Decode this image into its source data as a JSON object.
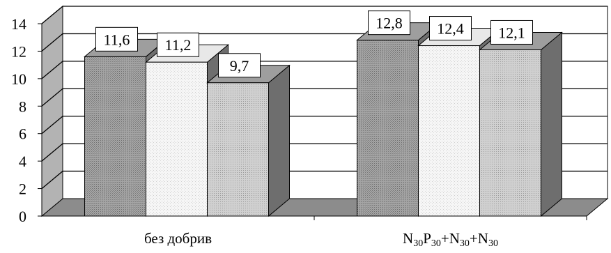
{
  "chart_data": {
    "type": "bar",
    "style": "3d-clustered",
    "categories": [
      "без добрив",
      "N30P30+N30+N30"
    ],
    "category_display": [
      [
        {
          "text": "без добрив",
          "sub": false
        }
      ],
      [
        {
          "text": "N",
          "sub": false
        },
        {
          "text": "30",
          "sub": true
        },
        {
          "text": "P",
          "sub": false
        },
        {
          "text": "30",
          "sub": true
        },
        {
          "text": "+N",
          "sub": false
        },
        {
          "text": "30",
          "sub": true
        },
        {
          "text": "+N",
          "sub": false
        },
        {
          "text": "30",
          "sub": true
        }
      ]
    ],
    "series": [
      {
        "values": [
          11.6,
          12.8
        ],
        "fill": "#9a9a9a",
        "pattern": "dense-dots"
      },
      {
        "values": [
          11.2,
          12.4
        ],
        "fill": "#f2f2f2",
        "pattern": "sparse-dots"
      },
      {
        "values": [
          9.7,
          12.1
        ],
        "fill": "#c4c4c4",
        "pattern": "medium-dots"
      }
    ],
    "data_labels": [
      [
        "11,6",
        "12,8"
      ],
      [
        "11,2",
        "12,4"
      ],
      [
        "9,7",
        "12,1"
      ]
    ],
    "y_ticks": [
      "0",
      "2",
      "4",
      "6",
      "8",
      "10",
      "12",
      "14"
    ],
    "ylim": [
      0,
      14
    ],
    "grid": true,
    "legend": "none",
    "title": "",
    "xlabel": "",
    "ylabel": ""
  }
}
